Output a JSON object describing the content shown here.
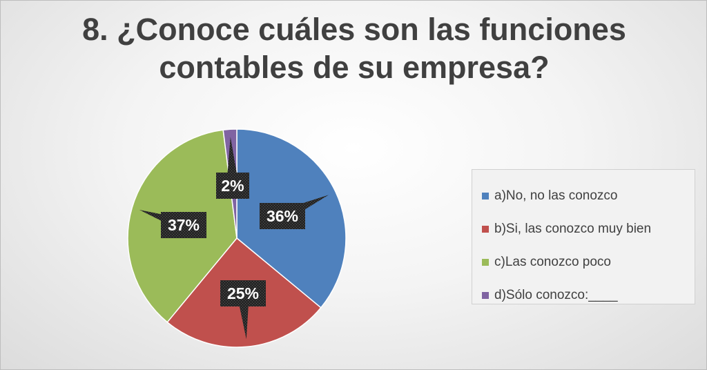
{
  "chart_data": {
    "type": "pie",
    "title_lines": [
      "8. ¿Conoce cuáles son las funciones",
      "contables de su empresa?"
    ],
    "start_angle_deg": 0,
    "direction": "clockwise",
    "legend_position": "right",
    "slices": [
      {
        "label": "a)No, no las conozco",
        "value": 36,
        "display": "36%",
        "color": "#4f81bd"
      },
      {
        "label": "b)Si, las conozco muy bien",
        "value": 25,
        "display": "25%",
        "color": "#c0504d"
      },
      {
        "label": "c)Las conozco poco",
        "value": 37,
        "display": "37%",
        "color": "#9bbb59"
      },
      {
        "label": "d)Sólo conozco:____",
        "value": 2,
        "display": "2%",
        "color": "#8064a2"
      }
    ]
  }
}
